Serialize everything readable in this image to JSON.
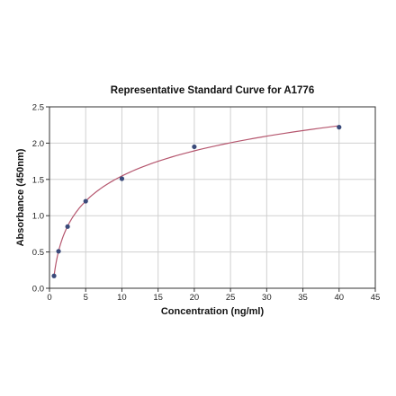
{
  "chart_data": {
    "type": "scatter",
    "title": "Representative Standard Curve for A1776",
    "xlabel": "Concentration (ng/ml)",
    "ylabel": "Absorbance (450nm)",
    "xlim": [
      0,
      45
    ],
    "ylim": [
      0,
      2.5
    ],
    "x_ticks": [
      "0",
      "5",
      "10",
      "15",
      "20",
      "25",
      "30",
      "35",
      "40",
      "45"
    ],
    "y_ticks": [
      "0.0",
      "0.5",
      "1.0",
      "1.5",
      "2.0",
      "2.5"
    ],
    "grid": true,
    "series": [
      {
        "points": [
          {
            "x": 0.625,
            "y": 0.17
          },
          {
            "x": 1.25,
            "y": 0.51
          },
          {
            "x": 2.5,
            "y": 0.85
          },
          {
            "x": 5,
            "y": 1.2
          },
          {
            "x": 10,
            "y": 1.51
          },
          {
            "x": 20,
            "y": 1.95
          },
          {
            "x": 40,
            "y": 2.22
          }
        ],
        "marker_color": "#3a4a7a",
        "fit_curve_color": "#b5566e"
      }
    ]
  }
}
